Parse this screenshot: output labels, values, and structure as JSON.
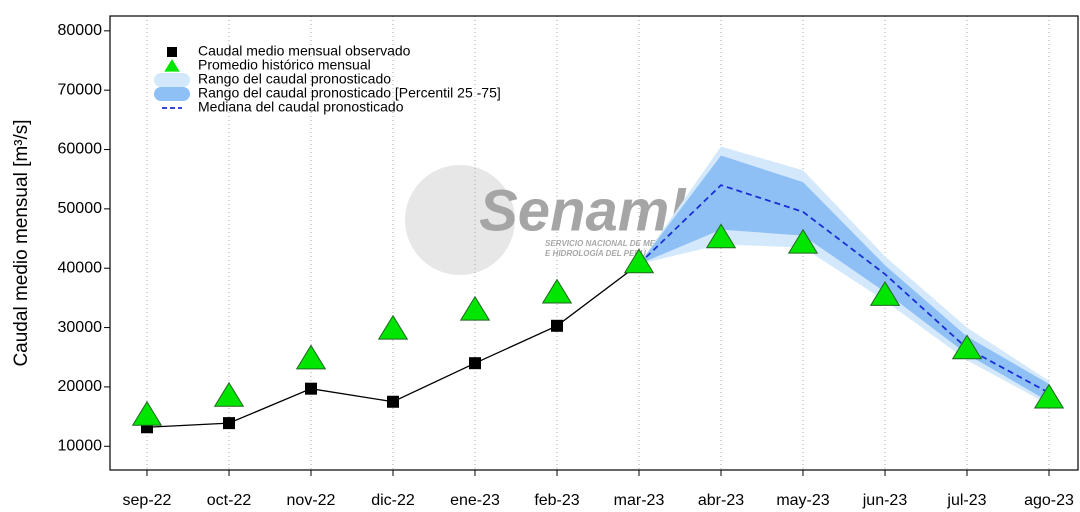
{
  "chart_data": {
    "type": "line",
    "y_label": "Caudal medio mensual  [m³/s]",
    "watermark": [
      "Senamhi",
      "SERVICIO NACIONAL DE METEOROLOGÍA",
      "E HIDROLOGÍA DEL PERÚ"
    ],
    "categories": [
      "sep-22",
      "oct-22",
      "nov-22",
      "dic-22",
      "ene-23",
      "feb-23",
      "mar-23",
      "abr-23",
      "may-23",
      "jun-23",
      "jul-23",
      "ago-23"
    ],
    "ylim": [
      6000,
      82500
    ],
    "yticks": [
      10000,
      20000,
      30000,
      40000,
      50000,
      60000,
      70000,
      80000
    ],
    "grid": "x",
    "legend": "upper left",
    "series": [
      {
        "name": "Caudal medio mensual observado",
        "kind": "square",
        "color": "#000000",
        "values": [
          13200,
          13900,
          19700,
          17500,
          24000,
          30300,
          40700,
          null,
          null,
          null,
          null,
          null
        ]
      },
      {
        "name": "Promedio histórico mensual",
        "kind": "triangle",
        "color": "#00e600",
        "values": [
          15300,
          18500,
          24800,
          29800,
          33000,
          35900,
          41000,
          45200,
          44300,
          35500,
          26500,
          18200
        ]
      },
      {
        "name": "Rango del caudal pronosticado",
        "kind": "band",
        "color": "#d4e8fb",
        "low": [
          null,
          null,
          null,
          null,
          null,
          null,
          40700,
          44000,
          43500,
          34500,
          24500,
          17000
        ],
        "high": [
          null,
          null,
          null,
          null,
          null,
          null,
          40700,
          60500,
          56500,
          42000,
          30000,
          21000
        ]
      },
      {
        "name": "Rango del caudal pronosticado [Percentil 25 -75]",
        "kind": "band",
        "color": "#8ec0f5",
        "low": [
          null,
          null,
          null,
          null,
          null,
          null,
          40700,
          46500,
          45500,
          36000,
          25500,
          17500
        ],
        "high": [
          null,
          null,
          null,
          null,
          null,
          null,
          40700,
          59000,
          54500,
          40500,
          28500,
          20500
        ]
      },
      {
        "name": "Mediana del caudal pronosticado",
        "kind": "dashed",
        "color": "#1a2ed6",
        "values": [
          null,
          null,
          null,
          null,
          null,
          null,
          40700,
          54000,
          49500,
          39000,
          26500,
          19000
        ]
      }
    ]
  }
}
